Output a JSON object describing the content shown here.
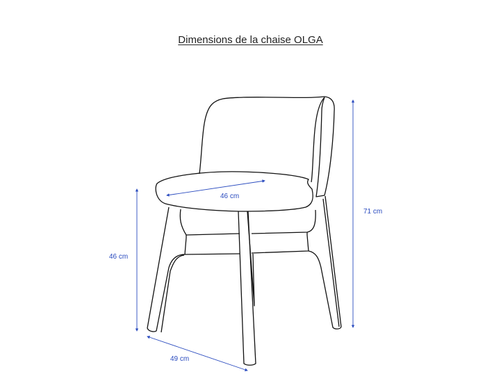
{
  "title": "Dimensions de la chaise OLGA",
  "dimensions": {
    "seat_depth": "46 cm",
    "seat_height": "46 cm",
    "total_height": "71 cm",
    "width": "49 cm"
  },
  "colors": {
    "dimension": "#2a4bbf",
    "outline": "#111111"
  }
}
